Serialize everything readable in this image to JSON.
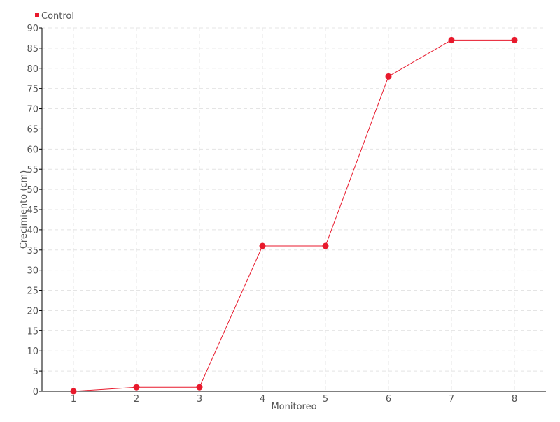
{
  "chart_data": {
    "type": "line",
    "title": "",
    "xlabel": "Monitoreo",
    "ylabel": "Crecimiento (cm)",
    "categories": [
      "1",
      "2",
      "3",
      "4",
      "5",
      "6",
      "7",
      "8"
    ],
    "series": [
      {
        "name": "Control",
        "values": [
          0,
          1,
          1,
          36,
          36,
          78,
          87,
          87
        ],
        "color": "#e8192c"
      }
    ],
    "ylim": [
      0,
      90
    ],
    "ytick_step": 5,
    "grid": true,
    "legend": "top-left"
  }
}
